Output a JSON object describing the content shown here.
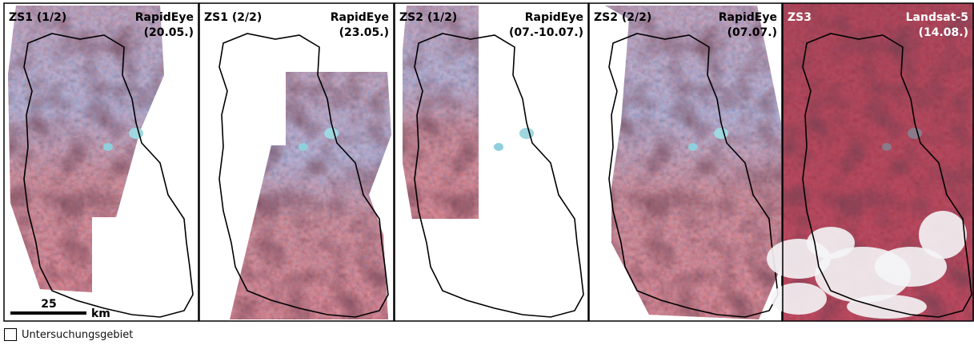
{
  "panels": [
    {
      "stage": "ZS1 (1/2)",
      "sensor": "RapidEye",
      "date": "(20.05.)"
    },
    {
      "stage": "ZS1 (2/2)",
      "sensor": "RapidEye",
      "date": "(23.05.)"
    },
    {
      "stage": "ZS2 (1/2)",
      "sensor": "RapidEye",
      "date": "(07.-10.07.)"
    },
    {
      "stage": "ZS2 (2/2)",
      "sensor": "RapidEye",
      "date": "(07.07.)"
    },
    {
      "stage": "ZS3",
      "sensor": "Landsat-5",
      "date": "(14.08.)"
    }
  ],
  "scale_bar": {
    "distance": "25",
    "unit": "km"
  },
  "legend": {
    "label": "Untersuchungsgebiet"
  }
}
